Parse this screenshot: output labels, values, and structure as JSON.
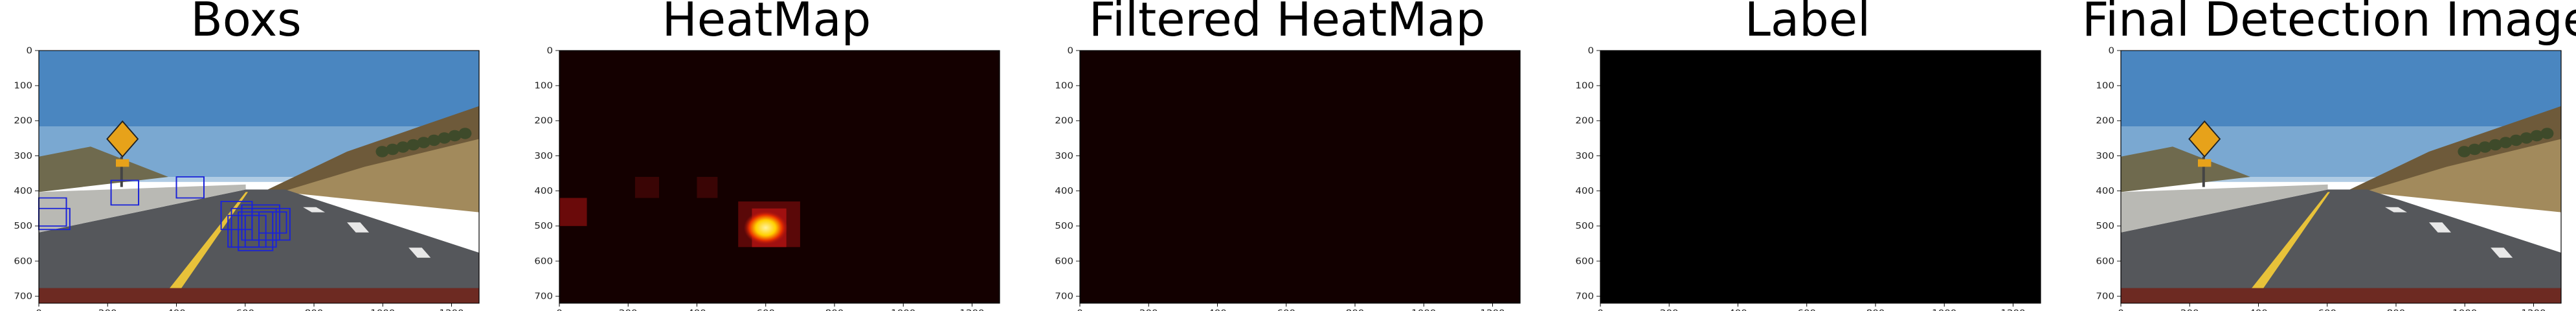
{
  "panels": [
    {
      "title": "Boxs"
    },
    {
      "title": "HeatMap"
    },
    {
      "title": "Filtered HeatMap"
    },
    {
      "title": "Label"
    },
    {
      "title": "Final Detection Image"
    }
  ],
  "axes": {
    "x_ticks": [
      "0",
      "200",
      "400",
      "600",
      "800",
      "1000",
      "1200"
    ],
    "y_ticks": [
      "0",
      "100",
      "200",
      "300",
      "400",
      "500",
      "600",
      "700"
    ]
  }
}
